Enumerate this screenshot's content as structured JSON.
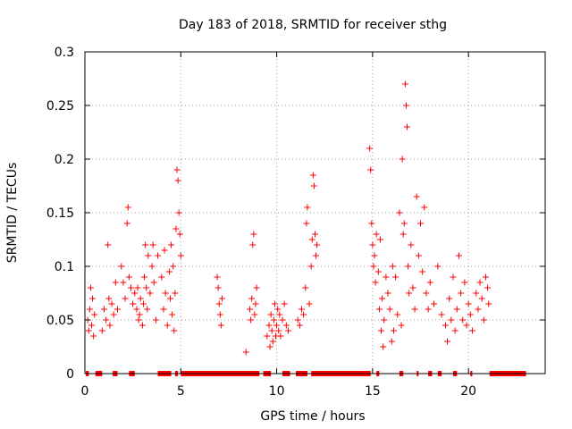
{
  "chart_data": {
    "type": "scatter",
    "title": "Day 183 of 2018, SRMTID for receiver sthg",
    "xlabel": "GPS time / hours",
    "ylabel": "SRMTID / TECUs",
    "xlim": [
      0,
      24
    ],
    "ylim": [
      0,
      0.3
    ],
    "xticks": [
      0,
      5,
      10,
      15,
      20
    ],
    "yticks": [
      0,
      0.05,
      0.1,
      0.15,
      0.2,
      0.25,
      0.3
    ],
    "xtick_labels": [
      "0",
      "5",
      "10",
      "15",
      "20"
    ],
    "ytick_labels": [
      "0",
      "0.05",
      "0.1",
      "0.15",
      "0.2",
      "0.25",
      "0.3"
    ],
    "grid": true,
    "marker": "+",
    "color": "#ff0000",
    "series": [
      {
        "name": "SRMTID",
        "points": [
          [
            0.15,
            0.05
          ],
          [
            0.2,
            0.04
          ],
          [
            0.25,
            0.06
          ],
          [
            0.3,
            0.08
          ],
          [
            0.35,
            0.045
          ],
          [
            0.4,
            0.07
          ],
          [
            0.45,
            0.035
          ],
          [
            0.5,
            0.055
          ],
          [
            0.9,
            0.04
          ],
          [
            1.0,
            0.06
          ],
          [
            1.1,
            0.05
          ],
          [
            1.2,
            0.12
          ],
          [
            1.25,
            0.07
          ],
          [
            1.3,
            0.045
          ],
          [
            1.4,
            0.065
          ],
          [
            1.5,
            0.055
          ],
          [
            1.6,
            0.085
          ],
          [
            1.7,
            0.06
          ],
          [
            1.9,
            0.1
          ],
          [
            2.0,
            0.085
          ],
          [
            2.1,
            0.07
          ],
          [
            2.2,
            0.14
          ],
          [
            2.25,
            0.155
          ],
          [
            2.3,
            0.09
          ],
          [
            2.4,
            0.08
          ],
          [
            2.5,
            0.065
          ],
          [
            2.6,
            0.075
          ],
          [
            2.7,
            0.06
          ],
          [
            2.75,
            0.08
          ],
          [
            2.8,
            0.05
          ],
          [
            2.85,
            0.055
          ],
          [
            2.9,
            0.07
          ],
          [
            3.0,
            0.045
          ],
          [
            3.05,
            0.065
          ],
          [
            3.1,
            0.09
          ],
          [
            3.15,
            0.12
          ],
          [
            3.2,
            0.08
          ],
          [
            3.25,
            0.06
          ],
          [
            3.3,
            0.11
          ],
          [
            3.4,
            0.075
          ],
          [
            3.5,
            0.1
          ],
          [
            3.55,
            0.12
          ],
          [
            3.6,
            0.085
          ],
          [
            3.7,
            0.05
          ],
          [
            3.8,
            0.11
          ],
          [
            4.0,
            0.09
          ],
          [
            4.1,
            0.06
          ],
          [
            4.15,
            0.115
          ],
          [
            4.2,
            0.075
          ],
          [
            4.3,
            0.045
          ],
          [
            4.4,
            0.095
          ],
          [
            4.45,
            0.07
          ],
          [
            4.5,
            0.12
          ],
          [
            4.55,
            0.055
          ],
          [
            4.6,
            0.1
          ],
          [
            4.65,
            0.04
          ],
          [
            4.7,
            0.075
          ],
          [
            4.75,
            0.135
          ],
          [
            4.8,
            0.19
          ],
          [
            4.85,
            0.18
          ],
          [
            4.9,
            0.15
          ],
          [
            4.95,
            0.13
          ],
          [
            5.0,
            0.11
          ],
          [
            6.9,
            0.09
          ],
          [
            6.95,
            0.08
          ],
          [
            7.0,
            0.065
          ],
          [
            7.05,
            0.055
          ],
          [
            7.1,
            0.045
          ],
          [
            7.15,
            0.07
          ],
          [
            8.4,
            0.02
          ],
          [
            8.6,
            0.06
          ],
          [
            8.65,
            0.05
          ],
          [
            8.7,
            0.07
          ],
          [
            8.75,
            0.12
          ],
          [
            8.8,
            0.13
          ],
          [
            8.85,
            0.055
          ],
          [
            8.9,
            0.065
          ],
          [
            8.95,
            0.08
          ],
          [
            9.5,
            0.035
          ],
          [
            9.6,
            0.045
          ],
          [
            9.65,
            0.025
          ],
          [
            9.7,
            0.055
          ],
          [
            9.75,
            0.04
          ],
          [
            9.8,
            0.03
          ],
          [
            9.85,
            0.05
          ],
          [
            9.9,
            0.065
          ],
          [
            9.95,
            0.035
          ],
          [
            10.0,
            0.045
          ],
          [
            10.05,
            0.06
          ],
          [
            10.1,
            0.04
          ],
          [
            10.15,
            0.055
          ],
          [
            10.2,
            0.035
          ],
          [
            10.3,
            0.05
          ],
          [
            10.4,
            0.065
          ],
          [
            10.5,
            0.045
          ],
          [
            10.6,
            0.04
          ],
          [
            11.1,
            0.05
          ],
          [
            11.2,
            0.045
          ],
          [
            11.3,
            0.06
          ],
          [
            11.4,
            0.055
          ],
          [
            11.5,
            0.08
          ],
          [
            11.55,
            0.14
          ],
          [
            11.6,
            0.155
          ],
          [
            11.7,
            0.065
          ],
          [
            11.8,
            0.1
          ],
          [
            11.85,
            0.125
          ],
          [
            11.9,
            0.185
          ],
          [
            11.95,
            0.175
          ],
          [
            12.0,
            0.13
          ],
          [
            12.05,
            0.11
          ],
          [
            12.1,
            0.12
          ],
          [
            14.85,
            0.21
          ],
          [
            14.9,
            0.19
          ],
          [
            14.95,
            0.14
          ],
          [
            15.0,
            0.12
          ],
          [
            15.05,
            0.1
          ],
          [
            15.1,
            0.11
          ],
          [
            15.15,
            0.085
          ],
          [
            15.2,
            0.13
          ],
          [
            15.3,
            0.095
          ],
          [
            15.35,
            0.06
          ],
          [
            15.4,
            0.125
          ],
          [
            15.45,
            0.04
          ],
          [
            15.5,
            0.07
          ],
          [
            15.55,
            0.025
          ],
          [
            15.6,
            0.05
          ],
          [
            15.7,
            0.09
          ],
          [
            15.8,
            0.075
          ],
          [
            15.9,
            0.06
          ],
          [
            16.0,
            0.03
          ],
          [
            16.05,
            0.1
          ],
          [
            16.1,
            0.04
          ],
          [
            16.2,
            0.09
          ],
          [
            16.3,
            0.055
          ],
          [
            16.4,
            0.15
          ],
          [
            16.5,
            0.045
          ],
          [
            16.55,
            0.2
          ],
          [
            16.6,
            0.13
          ],
          [
            16.65,
            0.14
          ],
          [
            16.7,
            0.27
          ],
          [
            16.75,
            0.25
          ],
          [
            16.8,
            0.23
          ],
          [
            16.85,
            0.1
          ],
          [
            16.9,
            0.075
          ],
          [
            17.0,
            0.12
          ],
          [
            17.1,
            0.08
          ],
          [
            17.2,
            0.06
          ],
          [
            17.3,
            0.165
          ],
          [
            17.4,
            0.11
          ],
          [
            17.5,
            0.14
          ],
          [
            17.6,
            0.095
          ],
          [
            17.7,
            0.155
          ],
          [
            17.8,
            0.075
          ],
          [
            17.9,
            0.06
          ],
          [
            18.0,
            0.085
          ],
          [
            18.2,
            0.065
          ],
          [
            18.4,
            0.1
          ],
          [
            18.6,
            0.055
          ],
          [
            18.8,
            0.045
          ],
          [
            18.9,
            0.03
          ],
          [
            19.0,
            0.07
          ],
          [
            19.1,
            0.05
          ],
          [
            19.2,
            0.09
          ],
          [
            19.3,
            0.04
          ],
          [
            19.4,
            0.06
          ],
          [
            19.5,
            0.11
          ],
          [
            19.6,
            0.075
          ],
          [
            19.7,
            0.05
          ],
          [
            19.8,
            0.085
          ],
          [
            19.9,
            0.045
          ],
          [
            20.0,
            0.065
          ],
          [
            20.1,
            0.055
          ],
          [
            20.2,
            0.04
          ],
          [
            20.4,
            0.075
          ],
          [
            20.5,
            0.06
          ],
          [
            20.6,
            0.085
          ],
          [
            20.7,
            0.07
          ],
          [
            20.8,
            0.05
          ],
          [
            20.9,
            0.09
          ],
          [
            21.0,
            0.08
          ],
          [
            21.05,
            0.065
          ]
        ],
        "zero_segments": [
          [
            0.05,
            0.2
          ],
          [
            0.55,
            0.9
          ],
          [
            1.45,
            1.7
          ],
          [
            2.3,
            2.6
          ],
          [
            3.8,
            4.5
          ],
          [
            4.7,
            4.85
          ],
          [
            5.0,
            9.1
          ],
          [
            9.3,
            9.7
          ],
          [
            10.3,
            10.7
          ],
          [
            11.0,
            11.6
          ],
          [
            11.8,
            14.9
          ],
          [
            15.2,
            15.35
          ],
          [
            16.4,
            16.6
          ],
          [
            17.3,
            17.4
          ],
          [
            17.9,
            18.1
          ],
          [
            18.4,
            18.6
          ],
          [
            19.2,
            19.4
          ],
          [
            20.1,
            20.2
          ],
          [
            21.1,
            23.0
          ]
        ]
      }
    ]
  }
}
